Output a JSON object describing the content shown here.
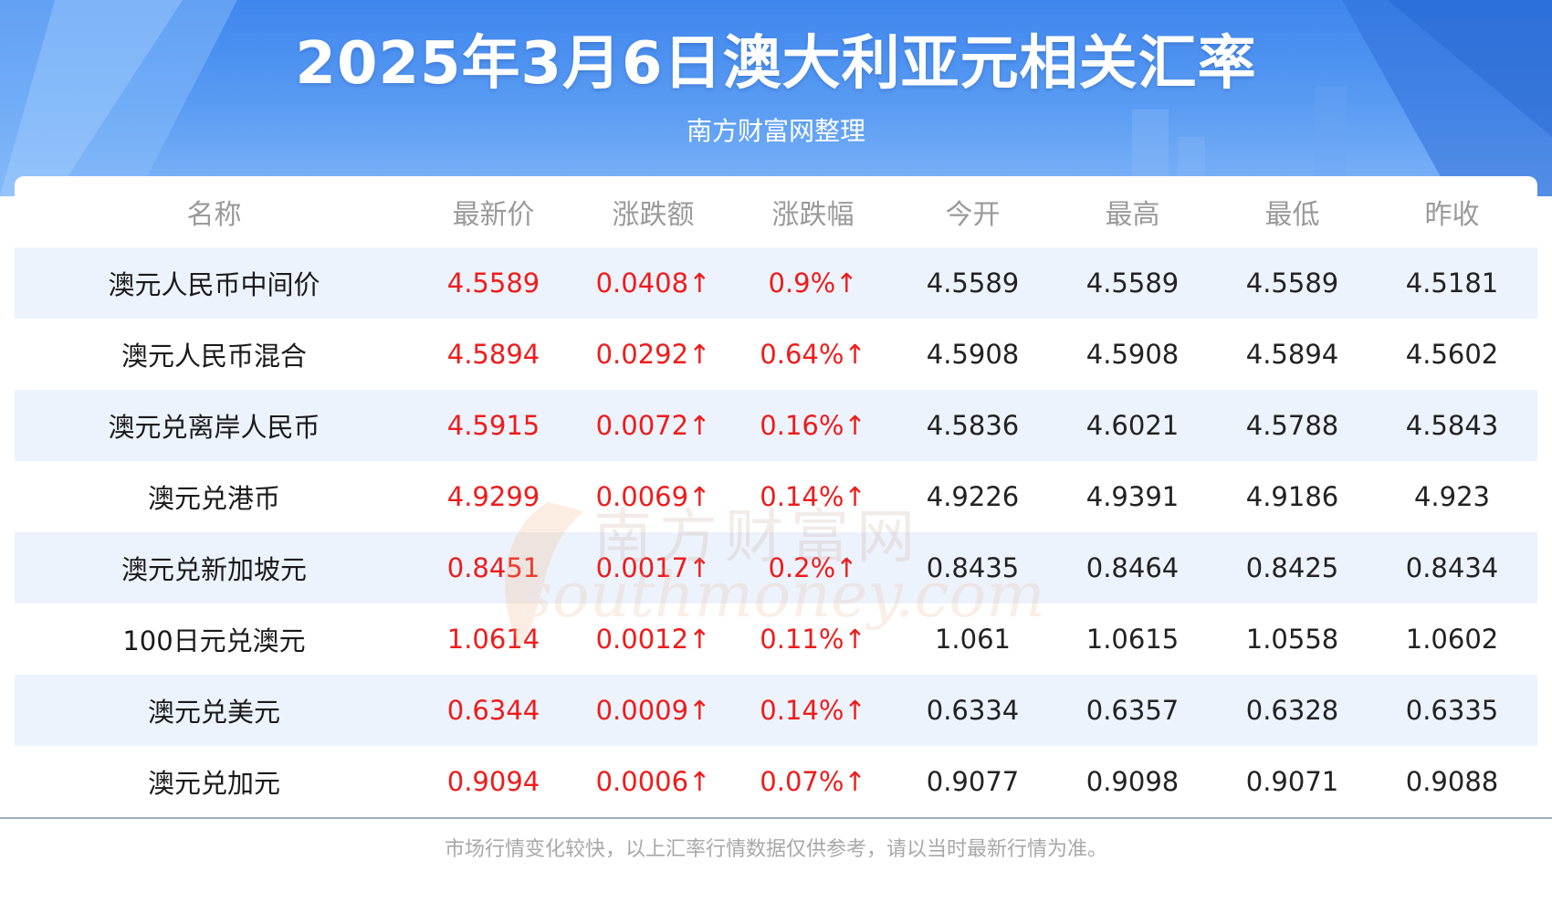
{
  "header": {
    "title": "2025年3月6日澳大利亚元相关汇率",
    "subtitle": "南方财富网整理"
  },
  "chart_data": {
    "type": "table",
    "columns": [
      "名称",
      "最新价",
      "涨跌额",
      "涨跌幅",
      "今开",
      "最高",
      "最低",
      "昨收"
    ],
    "rows": [
      [
        "澳元人民币中间价",
        "4.5589",
        "0.0408↑",
        "0.9%↑",
        "4.5589",
        "4.5589",
        "4.5589",
        "4.5181"
      ],
      [
        "澳元人民币混合",
        "4.5894",
        "0.0292↑",
        "0.64%↑",
        "4.5908",
        "4.5908",
        "4.5894",
        "4.5602"
      ],
      [
        "澳元兑离岸人民币",
        "4.5915",
        "0.0072↑",
        "0.16%↑",
        "4.5836",
        "4.6021",
        "4.5788",
        "4.5843"
      ],
      [
        "澳元兑港币",
        "4.9299",
        "0.0069↑",
        "0.14%↑",
        "4.9226",
        "4.9391",
        "4.9186",
        "4.923"
      ],
      [
        "澳元兑新加坡元",
        "0.8451",
        "0.0017↑",
        "0.2%↑",
        "0.8435",
        "0.8464",
        "0.8425",
        "0.8434"
      ],
      [
        "100日元兑澳元",
        "1.0614",
        "0.0012↑",
        "0.11%↑",
        "1.061",
        "1.0615",
        "1.0558",
        "1.0602"
      ],
      [
        "澳元兑美元",
        "0.6344",
        "0.0009↑",
        "0.14%↑",
        "0.6334",
        "0.6357",
        "0.6328",
        "0.6335"
      ],
      [
        "澳元兑加元",
        "0.9094",
        "0.0006↑",
        "0.07%↑",
        "0.9077",
        "0.9098",
        "0.9071",
        "0.9088"
      ]
    ]
  },
  "footer": {
    "note": "市场行情变化较快，以上汇率行情数据仅供参考，请以当时最新行情为准。"
  },
  "watermark": {
    "line1": "南方财富网",
    "line2": "southmoney.com"
  },
  "colors": {
    "header_blue": "#4a8ff0",
    "up_red": "#ee1c1c",
    "row_stripe": "#edf3fc",
    "header_text_gray": "#9a9a9a"
  }
}
